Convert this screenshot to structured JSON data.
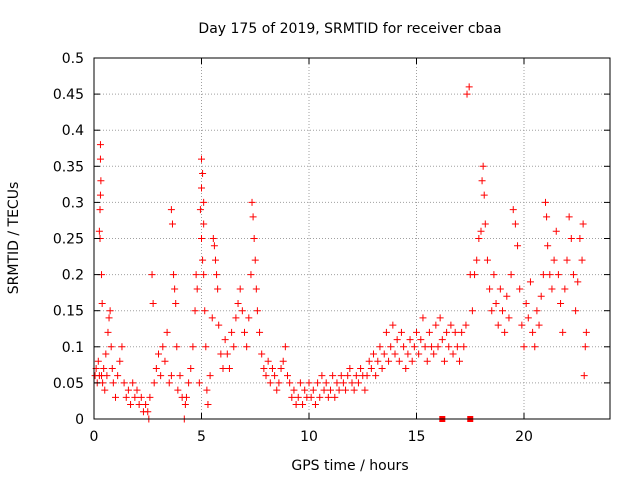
{
  "chart_data": {
    "type": "scatter",
    "title": "Day 175 of 2019, SRMTID for receiver cbaa",
    "xlabel": "GPS time / hours",
    "ylabel": "SRMTID / TECUs",
    "xlim": [
      0,
      24
    ],
    "ylim": [
      0,
      0.5
    ],
    "xticks": [
      0,
      5,
      10,
      15,
      20
    ],
    "xtick_labels": [
      "0",
      "5",
      "10",
      "15",
      "20"
    ],
    "yticks": [
      0,
      0.05,
      0.1,
      0.15,
      0.2,
      0.25,
      0.3,
      0.35,
      0.4,
      0.45,
      0.5
    ],
    "ytick_labels": [
      "0",
      "0.05",
      "0.1",
      "0.15",
      "0.2",
      "0.25",
      "0.3",
      "0.35",
      "0.4",
      "0.45",
      "0.5"
    ],
    "grid": true,
    "marker": "+",
    "color": "#ff0000",
    "series": [
      {
        "name": "SRMTID",
        "points": [
          [
            0.05,
            0.06
          ],
          [
            0.1,
            0.07
          ],
          [
            0.15,
            0.05
          ],
          [
            0.2,
            0.08
          ],
          [
            0.25,
            0.06
          ],
          [
            0.3,
            0.38
          ],
          [
            0.3,
            0.36
          ],
          [
            0.32,
            0.33
          ],
          [
            0.3,
            0.31
          ],
          [
            0.28,
            0.29
          ],
          [
            0.25,
            0.26
          ],
          [
            0.28,
            0.25
          ],
          [
            0.35,
            0.2
          ],
          [
            0.38,
            0.16
          ],
          [
            0.35,
            0.06
          ],
          [
            0.4,
            0.05
          ],
          [
            0.45,
            0.07
          ],
          [
            0.5,
            0.04
          ],
          [
            0.55,
            0.09
          ],
          [
            0.6,
            0.06
          ],
          [
            0.65,
            0.12
          ],
          [
            0.7,
            0.14
          ],
          [
            0.75,
            0.15
          ],
          [
            0.8,
            0.1
          ],
          [
            0.85,
            0.07
          ],
          [
            0.9,
            0.05
          ],
          [
            1.0,
            0.03
          ],
          [
            1.1,
            0.06
          ],
          [
            1.2,
            0.08
          ],
          [
            1.3,
            0.1
          ],
          [
            1.4,
            0.05
          ],
          [
            1.5,
            0.03
          ],
          [
            1.6,
            0.04
          ],
          [
            1.7,
            0.02
          ],
          [
            1.8,
            0.05
          ],
          [
            1.9,
            0.03
          ],
          [
            2.0,
            0.04
          ],
          [
            2.1,
            0.02
          ],
          [
            2.2,
            0.03
          ],
          [
            2.3,
            0.01
          ],
          [
            2.4,
            0.02
          ],
          [
            2.5,
            0.01
          ],
          [
            2.55,
            0.0
          ],
          [
            2.6,
            0.03
          ],
          [
            2.7,
            0.2
          ],
          [
            2.75,
            0.16
          ],
          [
            2.8,
            0.05
          ],
          [
            2.9,
            0.07
          ],
          [
            3.0,
            0.09
          ],
          [
            3.1,
            0.06
          ],
          [
            3.2,
            0.1
          ],
          [
            3.3,
            0.08
          ],
          [
            3.4,
            0.12
          ],
          [
            3.5,
            0.05
          ],
          [
            3.6,
            0.06
          ],
          [
            3.6,
            0.29
          ],
          [
            3.65,
            0.27
          ],
          [
            3.7,
            0.2
          ],
          [
            3.75,
            0.18
          ],
          [
            3.8,
            0.16
          ],
          [
            3.85,
            0.1
          ],
          [
            3.9,
            0.04
          ],
          [
            4.0,
            0.06
          ],
          [
            4.1,
            0.03
          ],
          [
            4.2,
            0.0
          ],
          [
            4.25,
            0.02
          ],
          [
            4.3,
            0.03
          ],
          [
            4.4,
            0.05
          ],
          [
            4.5,
            0.07
          ],
          [
            4.6,
            0.1
          ],
          [
            4.7,
            0.15
          ],
          [
            4.75,
            0.2
          ],
          [
            4.8,
            0.18
          ],
          [
            4.9,
            0.05
          ],
          [
            4.95,
            0.29
          ],
          [
            5.0,
            0.36
          ],
          [
            5.05,
            0.34
          ],
          [
            5.0,
            0.32
          ],
          [
            5.1,
            0.3
          ],
          [
            5.1,
            0.27
          ],
          [
            5.0,
            0.25
          ],
          [
            5.05,
            0.22
          ],
          [
            5.1,
            0.2
          ],
          [
            5.15,
            0.15
          ],
          [
            5.2,
            0.1
          ],
          [
            5.25,
            0.04
          ],
          [
            5.3,
            0.02
          ],
          [
            5.4,
            0.06
          ],
          [
            5.5,
            0.14
          ],
          [
            5.55,
            0.25
          ],
          [
            5.6,
            0.24
          ],
          [
            5.65,
            0.22
          ],
          [
            5.7,
            0.2
          ],
          [
            5.75,
            0.18
          ],
          [
            5.8,
            0.13
          ],
          [
            5.9,
            0.09
          ],
          [
            6.0,
            0.07
          ],
          [
            6.1,
            0.11
          ],
          [
            6.2,
            0.09
          ],
          [
            6.3,
            0.07
          ],
          [
            6.4,
            0.12
          ],
          [
            6.5,
            0.1
          ],
          [
            6.6,
            0.14
          ],
          [
            6.7,
            0.16
          ],
          [
            6.8,
            0.18
          ],
          [
            6.9,
            0.15
          ],
          [
            7.0,
            0.12
          ],
          [
            7.1,
            0.1
          ],
          [
            7.2,
            0.14
          ],
          [
            7.3,
            0.2
          ],
          [
            7.35,
            0.3
          ],
          [
            7.4,
            0.28
          ],
          [
            7.45,
            0.25
          ],
          [
            7.5,
            0.22
          ],
          [
            7.55,
            0.18
          ],
          [
            7.6,
            0.15
          ],
          [
            7.7,
            0.12
          ],
          [
            7.8,
            0.09
          ],
          [
            7.9,
            0.07
          ],
          [
            8.0,
            0.06
          ],
          [
            8.1,
            0.08
          ],
          [
            8.2,
            0.05
          ],
          [
            8.3,
            0.07
          ],
          [
            8.4,
            0.06
          ],
          [
            8.5,
            0.04
          ],
          [
            8.6,
            0.05
          ],
          [
            8.7,
            0.07
          ],
          [
            8.8,
            0.08
          ],
          [
            8.9,
            0.1
          ],
          [
            9.0,
            0.06
          ],
          [
            9.1,
            0.05
          ],
          [
            9.2,
            0.03
          ],
          [
            9.3,
            0.04
          ],
          [
            9.4,
            0.02
          ],
          [
            9.5,
            0.03
          ],
          [
            9.6,
            0.05
          ],
          [
            9.7,
            0.02
          ],
          [
            9.8,
            0.04
          ],
          [
            9.9,
            0.03
          ],
          [
            10.0,
            0.05
          ],
          [
            10.1,
            0.03
          ],
          [
            10.2,
            0.04
          ],
          [
            10.3,
            0.02
          ],
          [
            10.4,
            0.05
          ],
          [
            10.5,
            0.03
          ],
          [
            10.6,
            0.06
          ],
          [
            10.7,
            0.04
          ],
          [
            10.8,
            0.05
          ],
          [
            10.9,
            0.03
          ],
          [
            11.0,
            0.04
          ],
          [
            11.1,
            0.06
          ],
          [
            11.2,
            0.03
          ],
          [
            11.3,
            0.05
          ],
          [
            11.4,
            0.04
          ],
          [
            11.5,
            0.06
          ],
          [
            11.6,
            0.05
          ],
          [
            11.7,
            0.04
          ],
          [
            11.8,
            0.06
          ],
          [
            11.9,
            0.07
          ],
          [
            12.0,
            0.05
          ],
          [
            12.1,
            0.04
          ],
          [
            12.2,
            0.06
          ],
          [
            12.3,
            0.05
          ],
          [
            12.4,
            0.07
          ],
          [
            12.5,
            0.06
          ],
          [
            12.6,
            0.04
          ],
          [
            12.7,
            0.06
          ],
          [
            12.8,
            0.08
          ],
          [
            12.9,
            0.07
          ],
          [
            13.0,
            0.09
          ],
          [
            13.1,
            0.06
          ],
          [
            13.2,
            0.08
          ],
          [
            13.3,
            0.1
          ],
          [
            13.4,
            0.07
          ],
          [
            13.5,
            0.09
          ],
          [
            13.6,
            0.12
          ],
          [
            13.7,
            0.08
          ],
          [
            13.8,
            0.1
          ],
          [
            13.9,
            0.13
          ],
          [
            14.0,
            0.09
          ],
          [
            14.1,
            0.11
          ],
          [
            14.2,
            0.08
          ],
          [
            14.3,
            0.12
          ],
          [
            14.4,
            0.1
          ],
          [
            14.5,
            0.07
          ],
          [
            14.6,
            0.09
          ],
          [
            14.7,
            0.11
          ],
          [
            14.8,
            0.08
          ],
          [
            14.9,
            0.1
          ],
          [
            15.0,
            0.12
          ],
          [
            15.1,
            0.09
          ],
          [
            15.2,
            0.11
          ],
          [
            15.3,
            0.14
          ],
          [
            15.4,
            0.1
          ],
          [
            15.5,
            0.08
          ],
          [
            15.6,
            0.12
          ],
          [
            15.7,
            0.1
          ],
          [
            15.8,
            0.09
          ],
          [
            15.9,
            0.13
          ],
          [
            16.0,
            0.1
          ],
          [
            16.1,
            0.14
          ],
          [
            16.2,
            0.11
          ],
          [
            16.3,
            0.08
          ],
          [
            16.4,
            0.12
          ],
          [
            16.5,
            0.1
          ],
          [
            16.6,
            0.13
          ],
          [
            16.7,
            0.09
          ],
          [
            16.8,
            0.12
          ],
          [
            16.9,
            0.1
          ],
          [
            17.0,
            0.08
          ],
          [
            17.1,
            0.12
          ],
          [
            17.2,
            0.1
          ],
          [
            17.3,
            0.13
          ],
          [
            17.35,
            0.45
          ],
          [
            17.45,
            0.46
          ],
          [
            17.5,
            0.2
          ],
          [
            17.6,
            0.15
          ],
          [
            17.7,
            0.2
          ],
          [
            17.8,
            0.22
          ],
          [
            17.9,
            0.25
          ],
          [
            18.0,
            0.26
          ],
          [
            18.05,
            0.33
          ],
          [
            18.1,
            0.35
          ],
          [
            18.15,
            0.31
          ],
          [
            18.2,
            0.27
          ],
          [
            18.3,
            0.22
          ],
          [
            18.4,
            0.18
          ],
          [
            18.5,
            0.15
          ],
          [
            18.6,
            0.2
          ],
          [
            18.7,
            0.16
          ],
          [
            18.8,
            0.13
          ],
          [
            18.9,
            0.18
          ],
          [
            19.0,
            0.15
          ],
          [
            19.1,
            0.12
          ],
          [
            19.2,
            0.17
          ],
          [
            19.3,
            0.14
          ],
          [
            19.4,
            0.2
          ],
          [
            19.5,
            0.29
          ],
          [
            19.6,
            0.27
          ],
          [
            19.7,
            0.24
          ],
          [
            19.8,
            0.18
          ],
          [
            19.9,
            0.13
          ],
          [
            20.0,
            0.1
          ],
          [
            20.1,
            0.16
          ],
          [
            20.2,
            0.14
          ],
          [
            20.3,
            0.19
          ],
          [
            20.4,
            0.12
          ],
          [
            20.5,
            0.1
          ],
          [
            20.6,
            0.15
          ],
          [
            20.7,
            0.13
          ],
          [
            20.8,
            0.17
          ],
          [
            20.9,
            0.2
          ],
          [
            21.0,
            0.3
          ],
          [
            21.05,
            0.28
          ],
          [
            21.1,
            0.24
          ],
          [
            21.2,
            0.2
          ],
          [
            21.3,
            0.18
          ],
          [
            21.4,
            0.22
          ],
          [
            21.5,
            0.26
          ],
          [
            21.6,
            0.2
          ],
          [
            21.7,
            0.16
          ],
          [
            21.8,
            0.12
          ],
          [
            21.9,
            0.18
          ],
          [
            22.0,
            0.22
          ],
          [
            22.1,
            0.28
          ],
          [
            22.2,
            0.25
          ],
          [
            22.3,
            0.2
          ],
          [
            22.4,
            0.15
          ],
          [
            22.5,
            0.19
          ],
          [
            22.6,
            0.25
          ],
          [
            22.7,
            0.22
          ],
          [
            22.75,
            0.27
          ],
          [
            22.8,
            0.06
          ],
          [
            22.85,
            0.1
          ],
          [
            22.9,
            0.12
          ]
        ]
      }
    ],
    "special_markers": [
      [
        16.2,
        0.0
      ],
      [
        17.5,
        0.0
      ]
    ]
  }
}
